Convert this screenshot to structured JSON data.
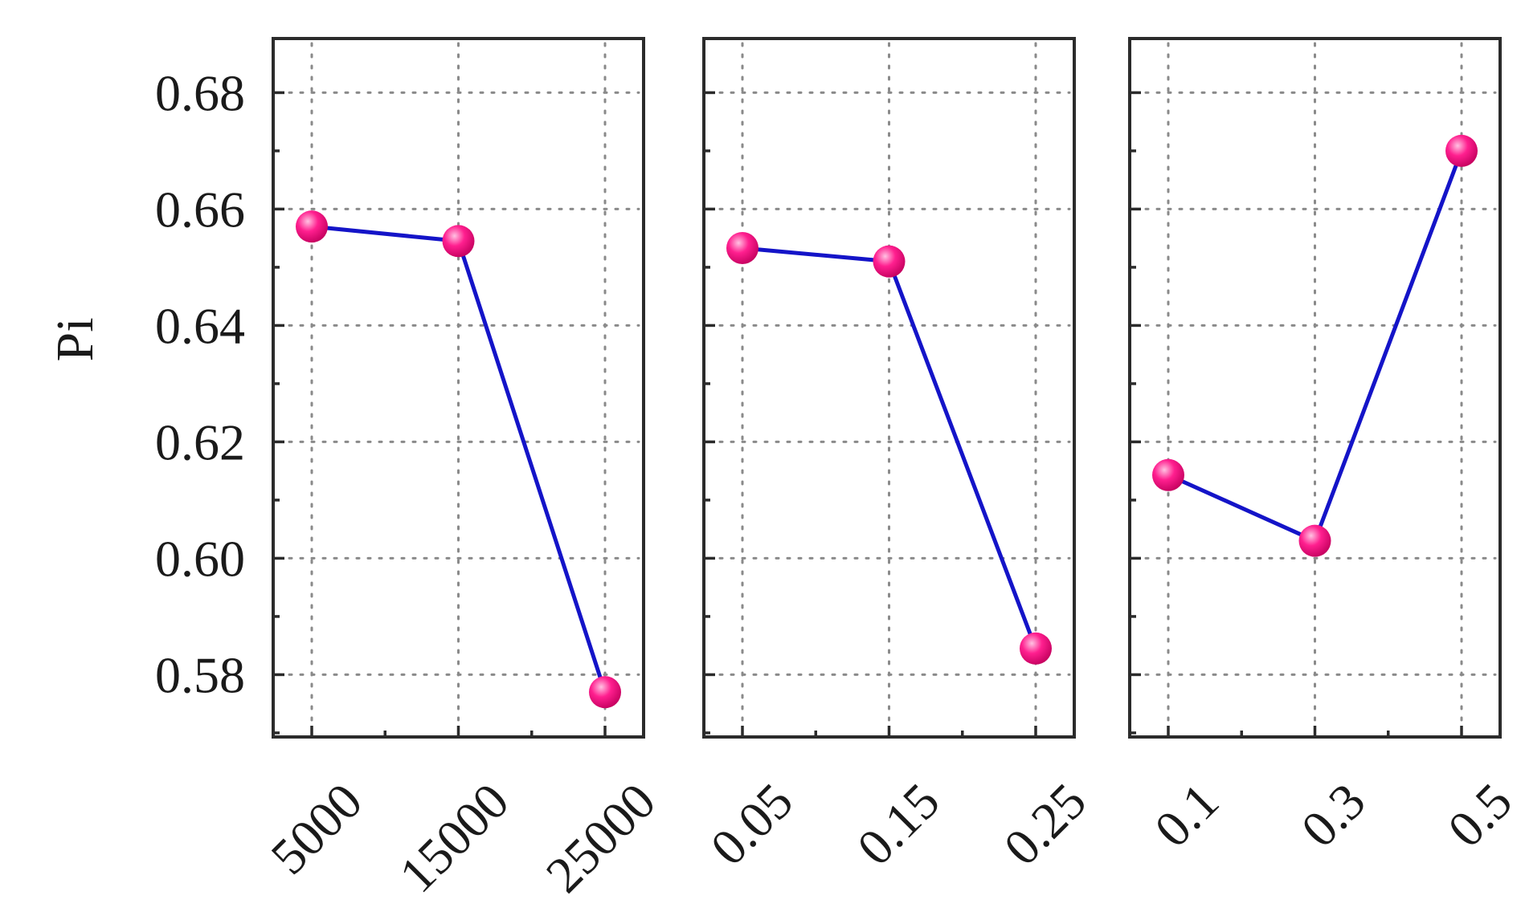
{
  "chart_data": {
    "type": "line",
    "ylabel": "Pi",
    "ylim": [
      0.5693,
      0.6893
    ],
    "yticks": [
      "0.58",
      "0.60",
      "0.62",
      "0.64",
      "0.66",
      "0.68"
    ],
    "ytick_values": [
      0.58,
      0.6,
      0.62,
      0.64,
      0.66,
      0.68
    ],
    "minor_ytick_values": [
      0.57,
      0.59,
      0.61,
      0.63,
      0.65,
      0.67
    ],
    "grid": true,
    "colors": {
      "line": "#1414c8",
      "marker": "#ff1f8f",
      "marker_highlight": "#ffc2e2",
      "marker_shadow": "#c4005e"
    },
    "panels": [
      {
        "categories": [
          "5000",
          "15000",
          "25000"
        ],
        "values": [
          0.657,
          0.6545,
          0.577
        ]
      },
      {
        "categories": [
          "0.05",
          "0.15",
          "0.25"
        ],
        "values": [
          0.6533,
          0.651,
          0.5845
        ]
      },
      {
        "categories": [
          "0.1",
          "0.3",
          "0.5"
        ],
        "values": [
          0.6143,
          0.603,
          0.67
        ]
      }
    ]
  }
}
